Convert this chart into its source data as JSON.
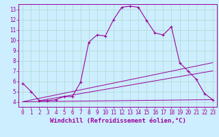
{
  "title": "",
  "xlabel": "Windchill (Refroidissement éolien,°C)",
  "ylabel": "",
  "bg_color": "#cceeff",
  "line_color": "#990099",
  "grid_color": "#b0d8cc",
  "xlim": [
    -0.5,
    23.5
  ],
  "ylim": [
    3.5,
    13.5
  ],
  "xticks": [
    0,
    1,
    2,
    3,
    4,
    5,
    6,
    7,
    8,
    9,
    10,
    11,
    12,
    13,
    14,
    15,
    16,
    17,
    18,
    19,
    20,
    21,
    22,
    23
  ],
  "yticks": [
    4,
    5,
    6,
    7,
    8,
    9,
    10,
    11,
    12,
    13
  ],
  "curve1_x": [
    0,
    1,
    2,
    3,
    4,
    5,
    6,
    7,
    8,
    9,
    10,
    11,
    12,
    13,
    14,
    15,
    16,
    17,
    18,
    19,
    20,
    21,
    22,
    23
  ],
  "curve1_y": [
    5.8,
    5.0,
    4.1,
    4.1,
    4.2,
    4.5,
    4.5,
    5.9,
    9.8,
    10.5,
    10.4,
    12.0,
    13.2,
    13.3,
    13.2,
    11.9,
    10.7,
    10.5,
    11.3,
    7.8,
    7.0,
    6.2,
    4.8,
    4.2
  ],
  "line2_x": [
    0,
    23
  ],
  "line2_y": [
    4.0,
    7.8
  ],
  "line3_x": [
    0,
    23
  ],
  "line3_y": [
    4.0,
    4.2
  ],
  "line4_x": [
    2,
    23
  ],
  "line4_y": [
    4.1,
    7.0
  ],
  "xlabel_fontsize": 6.5,
  "tick_fontsize": 5.5
}
